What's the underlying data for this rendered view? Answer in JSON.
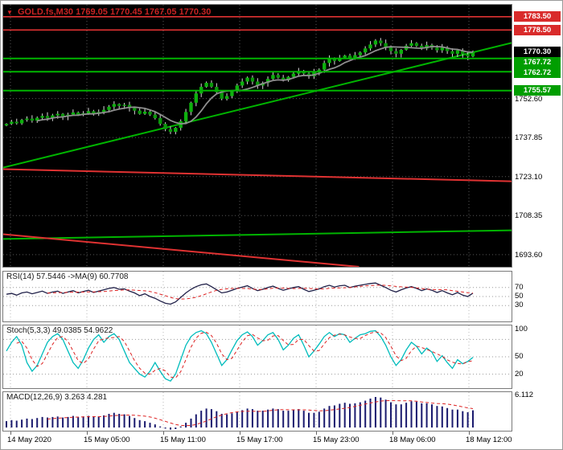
{
  "window": {
    "title_symbol": "GOLD.fs,M30",
    "title_ohlc": "1769.05 1770.45 1767.05 1770.30"
  },
  "icons": {
    "dropdown": "▼"
  },
  "colors": {
    "title": "#c82222",
    "bull_candle": "#0db00d",
    "bear_candle": "#0a960a",
    "wick": "#d8d8d8",
    "ma_main": "#8f8f8f",
    "resistance": "#e03232",
    "support": "#00b400",
    "rsi_line": "#202048",
    "stoch_line": "#00bcbc",
    "signal": "#dd2222",
    "macd_bar": "#1a1a6e"
  },
  "chart_data": [
    {
      "type": "candlestick",
      "symbol": "GOLD.fs,M30",
      "ohlc_display": "1769.05 1770.45 1767.05 1770.30",
      "x_labels": [
        "14 May 2020",
        "15 May 05:00",
        "15 May 11:00",
        "15 May 17:00",
        "15 May 23:00",
        "18 May 06:00",
        "18 May 12:00"
      ],
      "y_ticks": [
        1752.6,
        1737.85,
        1723.1,
        1708.35,
        1693.6
      ],
      "y_range": [
        1689,
        1788
      ],
      "badges": [
        {
          "text": "1783.50",
          "price": 1783.5,
          "role": "resistance"
        },
        {
          "text": "1778.50",
          "price": 1778.5,
          "role": "resistance"
        },
        {
          "text": "1770.30",
          "price": 1770.3,
          "role": "current"
        },
        {
          "text": "1767.72",
          "price": 1767.72,
          "role": "support"
        },
        {
          "text": "1762.72",
          "price": 1762.72,
          "role": "support"
        },
        {
          "text": "1755.57",
          "price": 1755.57,
          "role": "support"
        }
      ],
      "hlines": {
        "resistance": [
          1783.5,
          1778.5
        ],
        "support": [
          1767.72,
          1762.72,
          1755.57
        ]
      },
      "trendlines": [
        {
          "color": "support",
          "x1": 0,
          "p1": 1726.5,
          "x2": 1,
          "p2": 1773.6
        },
        {
          "color": "support",
          "x1": 0,
          "p1": 1699.5,
          "x2": 1,
          "p2": 1702.8
        },
        {
          "color": "resistance",
          "x1": 0,
          "p1": 1725.9,
          "x2": 1,
          "p2": 1721.3
        },
        {
          "color": "resistance",
          "x1": 0,
          "p1": 1701.3,
          "x2": 0.7,
          "p2": 1689.0
        }
      ],
      "closes": [
        1743.0,
        1743.8,
        1743.2,
        1744.5,
        1745.0,
        1744.2,
        1745.3,
        1746.0,
        1745.2,
        1746.2,
        1746.8,
        1745.8,
        1746.5,
        1747.3,
        1746.4,
        1747.0,
        1747.8,
        1746.8,
        1747.5,
        1748.3,
        1749.5,
        1750.5,
        1749.8,
        1750.2,
        1749.0,
        1748.0,
        1746.8,
        1747.6,
        1746.5,
        1745.2,
        1743.0,
        1741.0,
        1740.0,
        1741.5,
        1744.0,
        1747.5,
        1751.0,
        1754.5,
        1757.0,
        1758.5,
        1757.0,
        1755.0,
        1752.5,
        1753.5,
        1755.5,
        1757.5,
        1759.0,
        1760.5,
        1759.0,
        1757.5,
        1758.5,
        1760.0,
        1761.5,
        1760.5,
        1759.5,
        1760.8,
        1762.0,
        1763.0,
        1762.0,
        1761.0,
        1762.5,
        1763.5,
        1766.0,
        1767.5,
        1766.8,
        1768.0,
        1768.8,
        1767.8,
        1769.0,
        1770.0,
        1771.5,
        1773.0,
        1774.5,
        1773.5,
        1772.0,
        1770.5,
        1769.5,
        1771.0,
        1772.5,
        1773.5,
        1772.5,
        1771.5,
        1772.8,
        1771.8,
        1770.8,
        1771.8,
        1770.5,
        1769.5,
        1770.8,
        1769.3,
        1768.5,
        1770.3
      ]
    },
    {
      "type": "line",
      "name": "RSI",
      "label": "RSI(14) 57.5446  ->MA(9) 60.7708",
      "range": [
        0,
        100
      ],
      "scale_labels": [
        70,
        50,
        30
      ],
      "grid_levels": [
        70,
        50,
        30
      ],
      "ma_period": 9,
      "values": [
        55,
        57,
        53,
        58,
        60,
        56,
        59,
        62,
        57,
        60,
        62,
        57,
        60,
        63,
        58,
        61,
        64,
        59,
        62,
        65,
        68,
        70,
        66,
        67,
        62,
        58,
        52,
        56,
        50,
        46,
        40,
        35,
        33,
        38,
        48,
        58,
        66,
        72,
        76,
        78,
        72,
        65,
        58,
        60,
        64,
        68,
        71,
        74,
        68,
        63,
        66,
        70,
        73,
        68,
        64,
        67,
        70,
        72,
        66,
        61,
        64,
        67,
        72,
        75,
        71,
        74,
        75,
        70,
        73,
        75,
        77,
        79,
        80,
        75,
        70,
        64,
        60,
        65,
        69,
        72,
        68,
        63,
        67,
        64,
        59,
        63,
        58,
        54,
        59,
        53,
        50,
        57.5
      ]
    },
    {
      "type": "line",
      "name": "Stochastic",
      "label": "Stoch(5,3,3) 49.0385 54.9622",
      "range": [
        0,
        100
      ],
      "scale_labels": [
        100,
        50,
        20
      ],
      "grid_levels": [
        80,
        50,
        20
      ],
      "signal_period": 3,
      "values": [
        60,
        75,
        85,
        70,
        40,
        25,
        35,
        55,
        75,
        85,
        90,
        80,
        60,
        40,
        30,
        45,
        65,
        80,
        88,
        75,
        85,
        90,
        80,
        60,
        40,
        30,
        20,
        15,
        25,
        40,
        25,
        12,
        8,
        20,
        45,
        70,
        85,
        92,
        95,
        90,
        75,
        55,
        35,
        45,
        62,
        78,
        88,
        93,
        85,
        70,
        78,
        88,
        92,
        80,
        62,
        70,
        82,
        88,
        70,
        50,
        60,
        72,
        85,
        92,
        85,
        90,
        88,
        75,
        82,
        88,
        90,
        94,
        95,
        85,
        70,
        50,
        35,
        45,
        62,
        75,
        68,
        55,
        65,
        58,
        42,
        52,
        40,
        30,
        45,
        38,
        42,
        49
      ]
    },
    {
      "type": "bar",
      "name": "MACD",
      "label": "MACD(12,26,9) 3.263 4.281",
      "scale_labels": [
        6.112
      ],
      "scale_max": 6.112,
      "signal_period": 9,
      "values": [
        1.2,
        1.4,
        1.3,
        1.5,
        1.7,
        1.6,
        1.8,
        2.0,
        1.9,
        2.0,
        2.1,
        1.9,
        2.0,
        2.2,
        2.0,
        2.1,
        2.2,
        2.0,
        2.1,
        2.3,
        2.6,
        2.8,
        2.6,
        2.5,
        2.2,
        1.8,
        1.4,
        1.2,
        0.9,
        0.6,
        0.2,
        -0.2,
        -0.4,
        -0.3,
        0.2,
        0.9,
        1.7,
        2.5,
        3.2,
        3.6,
        3.5,
        3.1,
        2.6,
        2.5,
        2.7,
        3.0,
        3.3,
        3.6,
        3.5,
        3.2,
        3.2,
        3.4,
        3.6,
        3.5,
        3.2,
        3.2,
        3.4,
        3.5,
        3.2,
        2.8,
        2.8,
        3.0,
        3.6,
        4.1,
        4.2,
        4.5,
        4.7,
        4.5,
        4.6,
        4.8,
        5.1,
        5.5,
        5.8,
        5.7,
        5.3,
        4.8,
        4.4,
        4.4,
        4.7,
        5.0,
        4.9,
        4.6,
        4.6,
        4.4,
        4.1,
        4.0,
        3.7,
        3.4,
        3.4,
        3.1,
        2.9,
        3.263
      ]
    }
  ]
}
